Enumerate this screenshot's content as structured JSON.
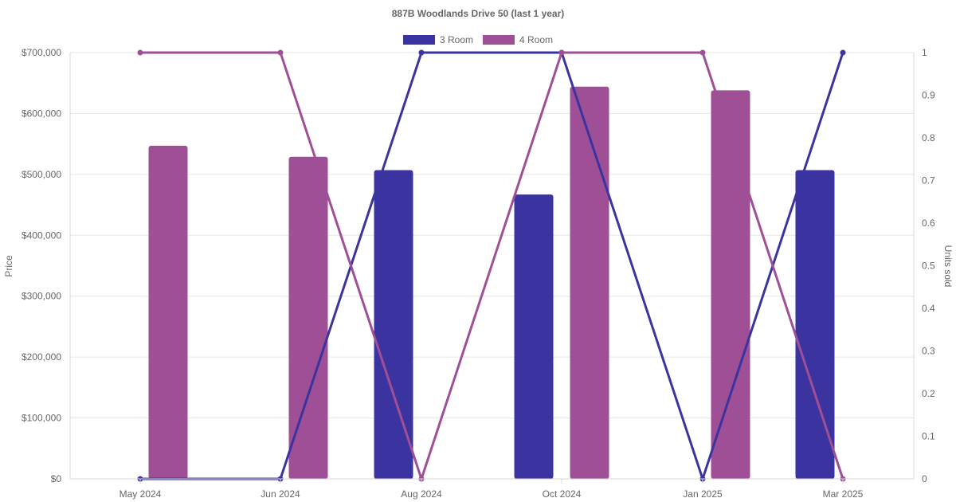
{
  "chart_data": {
    "type": "bar",
    "title": "887B Woodlands Drive 50 (last 1 year)",
    "categories": [
      "May 2024",
      "Jun 2024",
      "Aug 2024",
      "Oct 2024",
      "Jan 2025",
      "Mar 2025"
    ],
    "y_left": {
      "label": "Price",
      "range": [
        0,
        700000
      ],
      "ticks": [
        0,
        100000,
        200000,
        300000,
        400000,
        500000,
        600000,
        700000
      ],
      "tick_labels": [
        "$0",
        "$100,000",
        "$200,000",
        "$300,000",
        "$400,000",
        "$500,000",
        "$600,000",
        "$700,000"
      ]
    },
    "y_right": {
      "label": "Units sold",
      "range": [
        0,
        1
      ],
      "ticks": [
        0,
        0.1,
        0.2,
        0.3,
        0.4,
        0.5,
        0.6,
        0.7,
        0.8,
        0.9,
        1
      ],
      "tick_labels": [
        "0",
        "0.1",
        "0.2",
        "0.3",
        "0.4",
        "0.5",
        "0.6",
        "0.7",
        "0.8",
        "0.9",
        "1"
      ]
    },
    "series": [
      {
        "name": "3 Room",
        "color": "#3b34a0",
        "price": [
          null,
          null,
          507000,
          467000,
          null,
          507000
        ],
        "units": [
          0,
          0,
          1,
          1,
          0,
          1
        ]
      },
      {
        "name": "4 Room",
        "color": "#9e4f95",
        "price": [
          547000,
          529000,
          null,
          644000,
          638000,
          null
        ],
        "units": [
          1,
          1,
          0,
          1,
          1,
          0
        ]
      }
    ],
    "legend": {
      "position": "top",
      "entries": [
        "3 Room",
        "4 Room"
      ]
    },
    "grid": true
  }
}
